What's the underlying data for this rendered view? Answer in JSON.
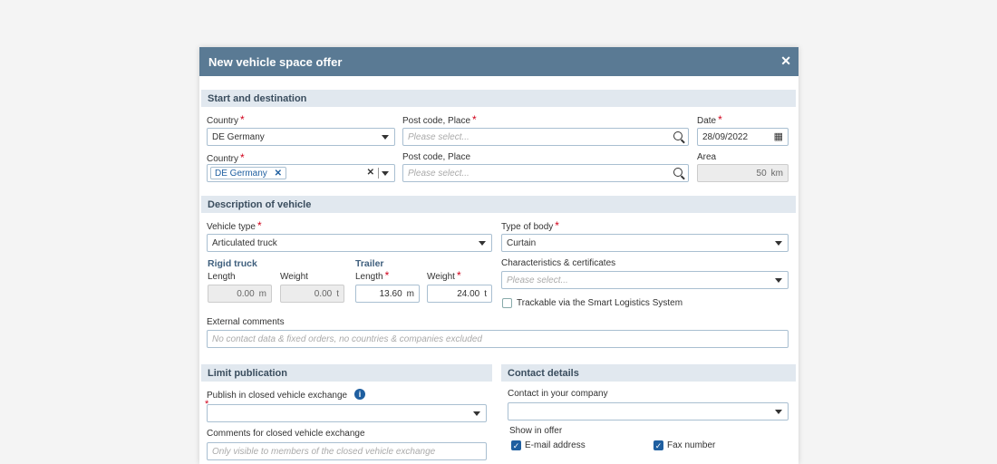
{
  "dialog": {
    "title": "New vehicle space offer",
    "close_icon": "close-icon"
  },
  "start": {
    "section": "Start and destination",
    "country1_label": "Country",
    "country1_value": "DE Germany",
    "post1_label": "Post code, Place",
    "post1_placeholder": "Please select...",
    "date_label": "Date",
    "date_value": "28/09/2022",
    "country2_label": "Country",
    "country2_tag": "DE Germany",
    "post2_label": "Post code, Place",
    "post2_placeholder": "Please select...",
    "area_label": "Area",
    "area_value": "50",
    "area_unit": "km"
  },
  "vehicle": {
    "section": "Description of vehicle",
    "type_label": "Vehicle type",
    "type_value": "Articulated truck",
    "body_label": "Type of body",
    "body_value": "Curtain",
    "rigid_label": "Rigid truck",
    "trailer_label": "Trailer",
    "length_label": "Length",
    "weight_label": "Weight",
    "rigid_length": "0.00",
    "rigid_weight": "0.00",
    "trailer_length": "13.60",
    "trailer_weight": "24.00",
    "unit_m": "m",
    "unit_t": "t",
    "char_label": "Characteristics & certificates",
    "char_placeholder": "Please select...",
    "trackable_label": "Trackable via the Smart Logistics System",
    "trackable_checked": false,
    "ext_label": "External comments",
    "ext_placeholder": "No contact data & fixed orders, no countries & companies excluded"
  },
  "limit": {
    "section": "Limit publication",
    "publish_label": "Publish in closed vehicle exchange",
    "comments_label": "Comments for closed vehicle exchange",
    "comments_placeholder": "Only visible to members of the closed vehicle exchange"
  },
  "contact": {
    "section": "Contact details",
    "contact_label": "Contact in your company",
    "show_label": "Show in offer",
    "email_label": "E-mail address",
    "email_checked": true,
    "fax_label": "Fax number",
    "fax_checked": true
  },
  "req": "*",
  "colors": {
    "header": "#5a7a94",
    "section": "#e1e8ef",
    "required": "#d0021b",
    "accent": "#1f5fa0"
  }
}
